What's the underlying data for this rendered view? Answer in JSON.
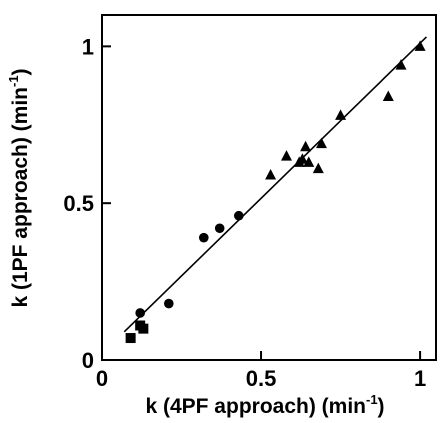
{
  "chart_data": {
    "type": "scatter",
    "xlabel": "k (4PF approach) (min",
    "xlabel_sup": "-1",
    "xlabel_end": ")",
    "ylabel": "k (1PF approach) (min",
    "ylabel_sup": "-1",
    "ylabel_end": ")",
    "xlim": [
      0,
      1.05
    ],
    "ylim": [
      0,
      1.1
    ],
    "xticks": [
      0,
      0.5,
      1
    ],
    "xtick_labels": [
      "0",
      "0.5",
      "1"
    ],
    "yticks": [
      0,
      0.5,
      1
    ],
    "ytick_labels": [
      "0",
      "0.5",
      "1"
    ],
    "grid": false,
    "colors": {
      "marker": "#000000",
      "axes": "#000000",
      "background": "#ffffff"
    },
    "series": [
      {
        "marker": "square",
        "points": [
          [
            0.09,
            0.07
          ],
          [
            0.12,
            0.11
          ],
          [
            0.13,
            0.1
          ]
        ]
      },
      {
        "marker": "circle",
        "points": [
          [
            0.12,
            0.15
          ],
          [
            0.21,
            0.18
          ],
          [
            0.32,
            0.39
          ],
          [
            0.37,
            0.42
          ],
          [
            0.43,
            0.46
          ]
        ]
      },
      {
        "marker": "triangle",
        "points": [
          [
            0.53,
            0.59
          ],
          [
            0.58,
            0.65
          ],
          [
            0.62,
            0.63
          ],
          [
            0.63,
            0.64
          ],
          [
            0.64,
            0.68
          ],
          [
            0.65,
            0.63
          ],
          [
            0.68,
            0.61
          ],
          [
            0.69,
            0.69
          ],
          [
            0.75,
            0.78
          ],
          [
            0.9,
            0.84
          ],
          [
            0.94,
            0.94
          ],
          [
            1.0,
            1.0
          ]
        ]
      }
    ],
    "fit_line": {
      "x": [
        0.07,
        1.02
      ],
      "y": [
        0.09,
        1.03
      ]
    }
  }
}
